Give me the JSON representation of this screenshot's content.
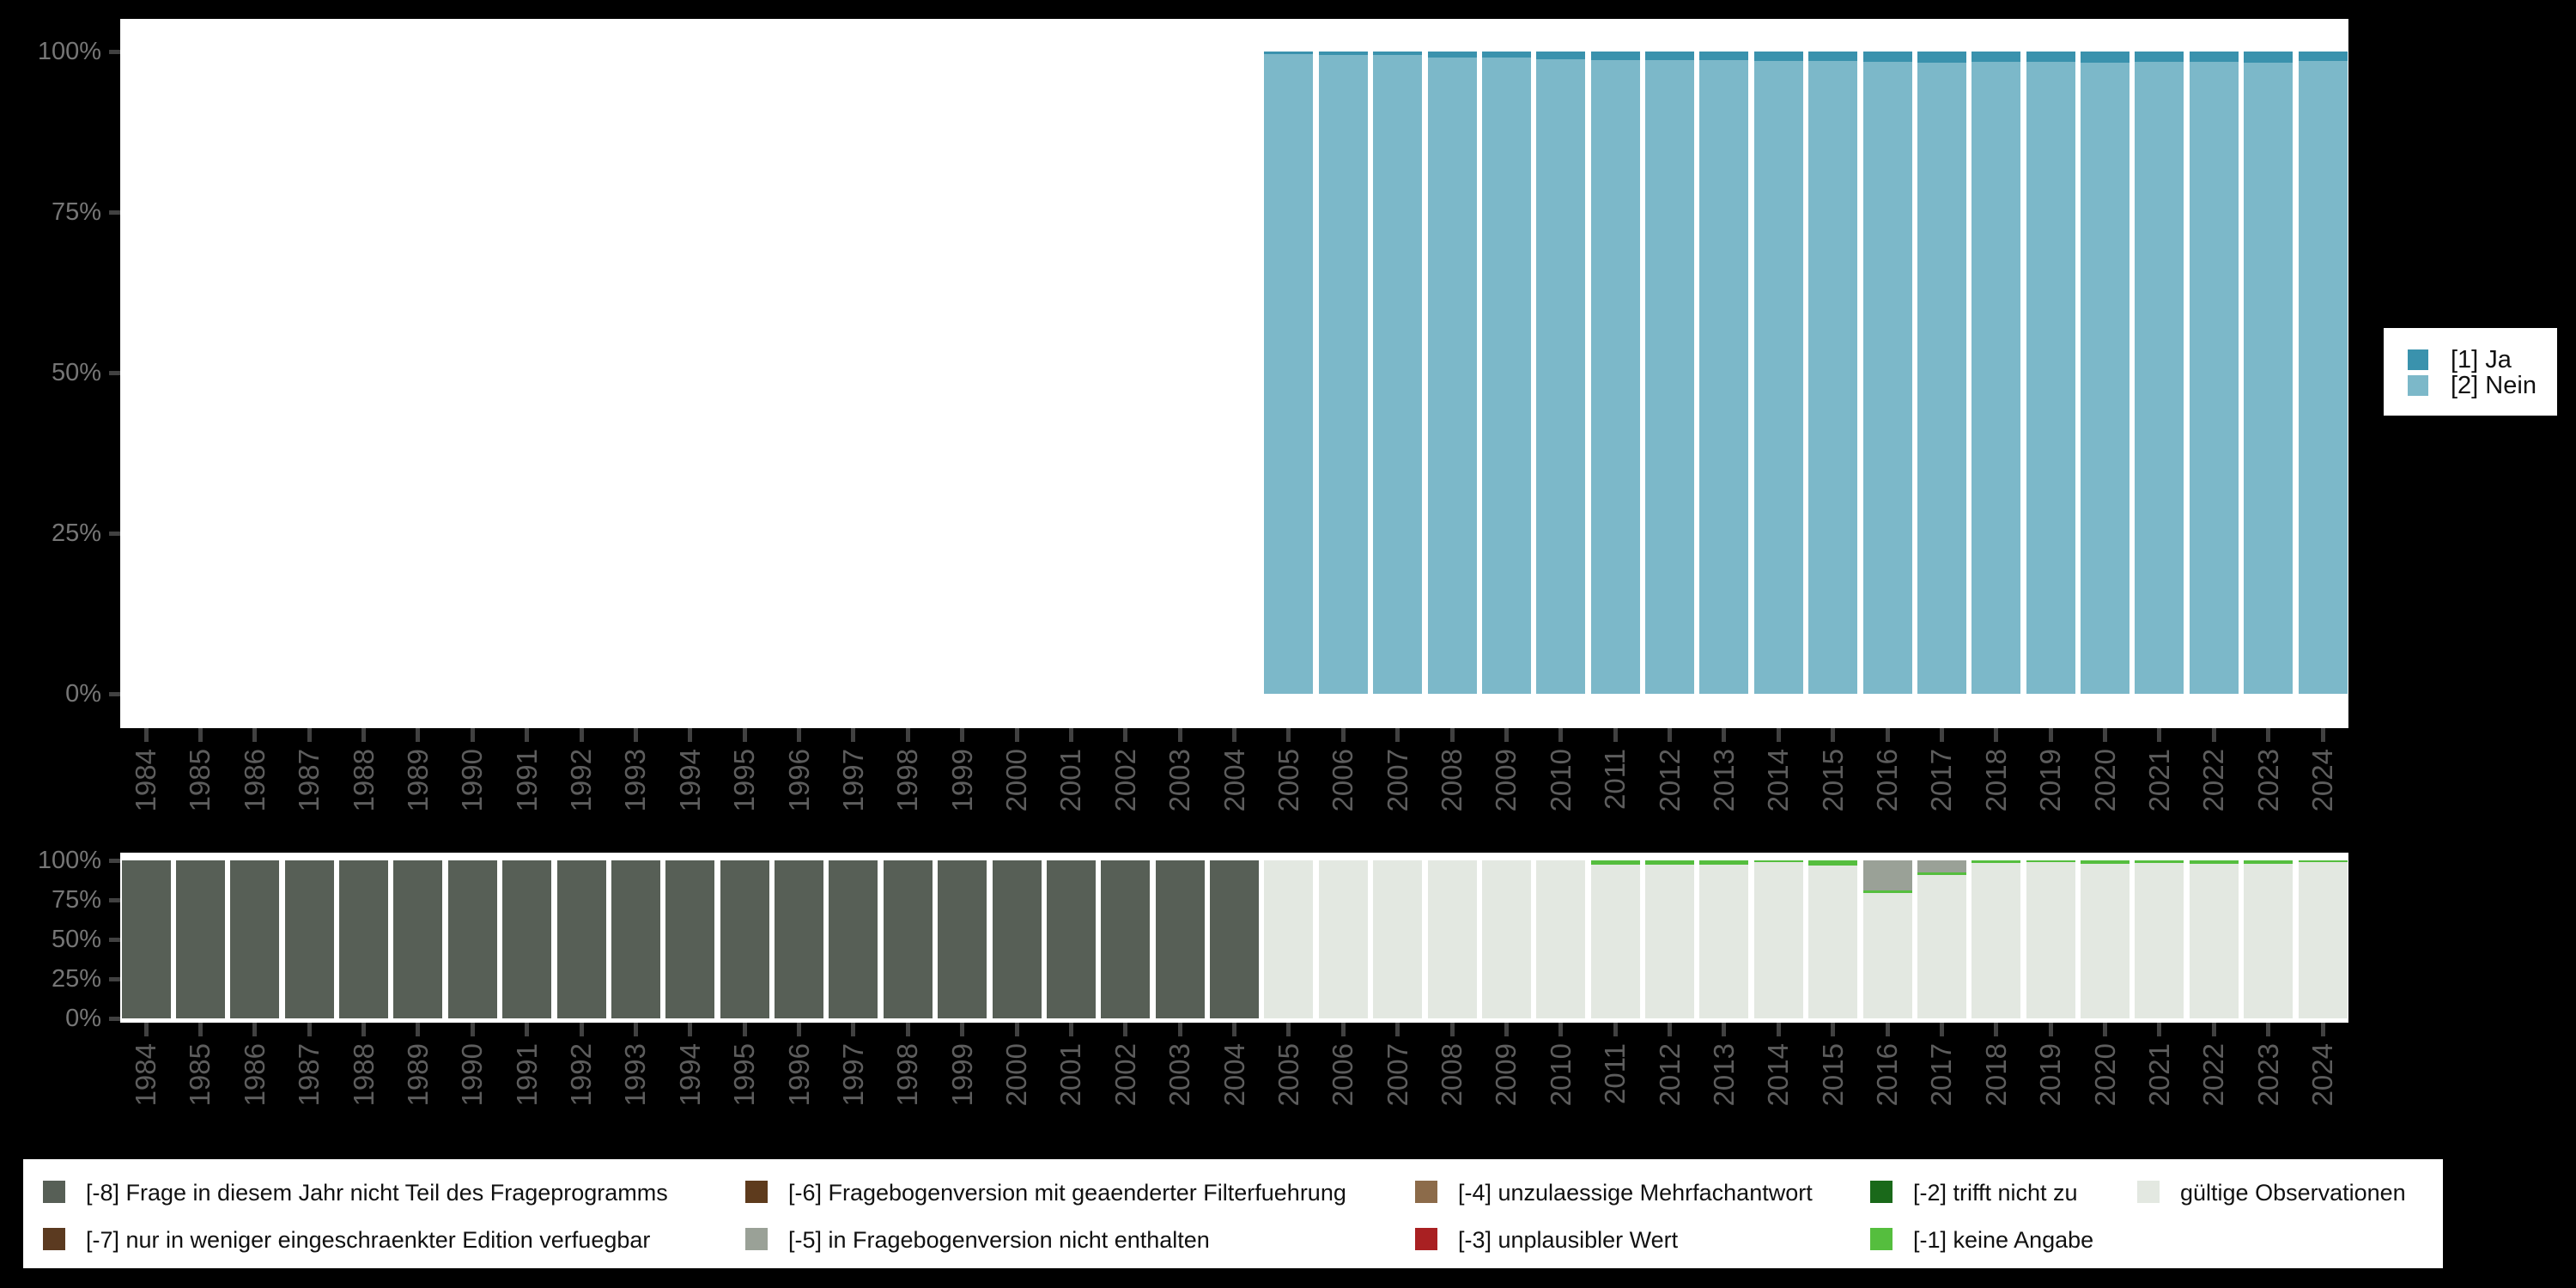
{
  "background_color": "#000000",
  "plot_background_color": "#ffffff",
  "axis": {
    "tick_color": "#414141",
    "y_label_color": "#767676",
    "x_label_color": "#5d5d5d"
  },
  "chart_data": [
    {
      "id": "response-values",
      "type": "bar",
      "stacked": true,
      "unit": "percent",
      "ylim": [
        0,
        100
      ],
      "grid": false,
      "legend_position": "right",
      "y_ticks": [
        "100%",
        "75%",
        "50%",
        "25%",
        "0%"
      ],
      "y_tick_values": [
        100,
        75,
        50,
        25,
        0
      ],
      "categories": [
        "1984",
        "1985",
        "1986",
        "1987",
        "1988",
        "1989",
        "1990",
        "1991",
        "1992",
        "1993",
        "1994",
        "1995",
        "1996",
        "1997",
        "1998",
        "1999",
        "2000",
        "2001",
        "2002",
        "2003",
        "2004",
        "2005",
        "2006",
        "2007",
        "2008",
        "2009",
        "2010",
        "2011",
        "2012",
        "2013",
        "2014",
        "2015",
        "2016",
        "2017",
        "2018",
        "2019",
        "2020",
        "2021",
        "2022",
        "2023",
        "2024"
      ],
      "series": [
        {
          "name": "[1] Ja",
          "color": "#3a92ad",
          "values": {
            "2005": 0.4,
            "2006": 0.5,
            "2007": 0.6,
            "2008": 1.0,
            "2009": 1.0,
            "2010": 1.2,
            "2011": 1.3,
            "2012": 1.4,
            "2013": 1.4,
            "2014": 1.5,
            "2015": 1.5,
            "2016": 1.6,
            "2017": 1.8,
            "2018": 1.6,
            "2019": 1.6,
            "2020": 1.7,
            "2021": 1.6,
            "2022": 1.6,
            "2023": 1.7,
            "2024": 1.5
          }
        },
        {
          "name": "[2] Nein",
          "color": "#7cb8c9",
          "values": {
            "2005": 99.6,
            "2006": 99.5,
            "2007": 99.4,
            "2008": 99.0,
            "2009": 99.0,
            "2010": 98.8,
            "2011": 98.7,
            "2012": 98.6,
            "2013": 98.6,
            "2014": 98.5,
            "2015": 98.5,
            "2016": 98.4,
            "2017": 98.2,
            "2018": 98.4,
            "2019": 98.4,
            "2020": 98.3,
            "2021": 98.4,
            "2022": 98.4,
            "2023": 98.3,
            "2024": 98.5
          }
        }
      ]
    },
    {
      "id": "missing-values",
      "type": "bar",
      "stacked": true,
      "unit": "percent",
      "ylim": [
        0,
        100
      ],
      "grid": false,
      "legend_position": "bottom",
      "y_ticks": [
        "100%",
        "75%",
        "50%",
        "25%",
        "0%"
      ],
      "y_tick_values": [
        100,
        75,
        50,
        25,
        0
      ],
      "categories": [
        "1984",
        "1985",
        "1986",
        "1987",
        "1988",
        "1989",
        "1990",
        "1991",
        "1992",
        "1993",
        "1994",
        "1995",
        "1996",
        "1997",
        "1998",
        "1999",
        "2000",
        "2001",
        "2002",
        "2003",
        "2004",
        "2005",
        "2006",
        "2007",
        "2008",
        "2009",
        "2010",
        "2011",
        "2012",
        "2013",
        "2014",
        "2015",
        "2016",
        "2017",
        "2018",
        "2019",
        "2020",
        "2021",
        "2022",
        "2023",
        "2024"
      ],
      "series": [
        {
          "name": "[-8] Frage in diesem Jahr nicht Teil des Frageprogramms",
          "color": "#575f56",
          "values": {
            "1984": 100,
            "1985": 100,
            "1986": 100,
            "1987": 100,
            "1988": 100,
            "1989": 100,
            "1990": 100,
            "1991": 100,
            "1992": 100,
            "1993": 100,
            "1994": 100,
            "1995": 100,
            "1996": 100,
            "1997": 100,
            "1998": 100,
            "1999": 100,
            "2000": 100,
            "2001": 100,
            "2002": 100,
            "2003": 100,
            "2004": 100
          }
        },
        {
          "name": "[-7] nur in weniger eingeschraenkter Edition verfuegbar",
          "color": "#5b3a20",
          "values": {}
        },
        {
          "name": "[-6] Fragebogenversion mit geaenderter Filterfuehrung",
          "color": "#5e3b1d",
          "values": {}
        },
        {
          "name": "[-5] in Fragebogenversion nicht enthalten",
          "color": "#9aa197",
          "values": {
            "2016": 19,
            "2017": 7.5
          }
        },
        {
          "name": "[-4] unzulaessige Mehrfachantwort",
          "color": "#8c6b4a",
          "values": {}
        },
        {
          "name": "[-3] unplausibler Wert",
          "color": "#a92022",
          "values": {}
        },
        {
          "name": "[-2] trifft nicht zu",
          "color": "#1a691a",
          "values": {}
        },
        {
          "name": "[-1] keine Angabe",
          "color": "#55be3e",
          "values": {
            "2011": 2.5,
            "2012": 2.5,
            "2013": 2.5,
            "2014": 1,
            "2015": 3,
            "2016": 1.5,
            "2017": 1.5,
            "2018": 1.5,
            "2019": 1,
            "2020": 2,
            "2021": 1.5,
            "2022": 2,
            "2023": 2,
            "2024": 1
          }
        },
        {
          "name": "gültige Observationen",
          "color": "#e3e8e1",
          "values": {
            "2005": 100,
            "2006": 100,
            "2007": 100,
            "2008": 100,
            "2009": 100,
            "2010": 100,
            "2011": 97.5,
            "2012": 97.5,
            "2013": 97.5,
            "2014": 99,
            "2015": 97,
            "2016": 79.5,
            "2017": 91,
            "2018": 98.5,
            "2019": 99,
            "2020": 98,
            "2021": 98.5,
            "2022": 98,
            "2023": 98,
            "2024": 99
          }
        }
      ]
    }
  ]
}
